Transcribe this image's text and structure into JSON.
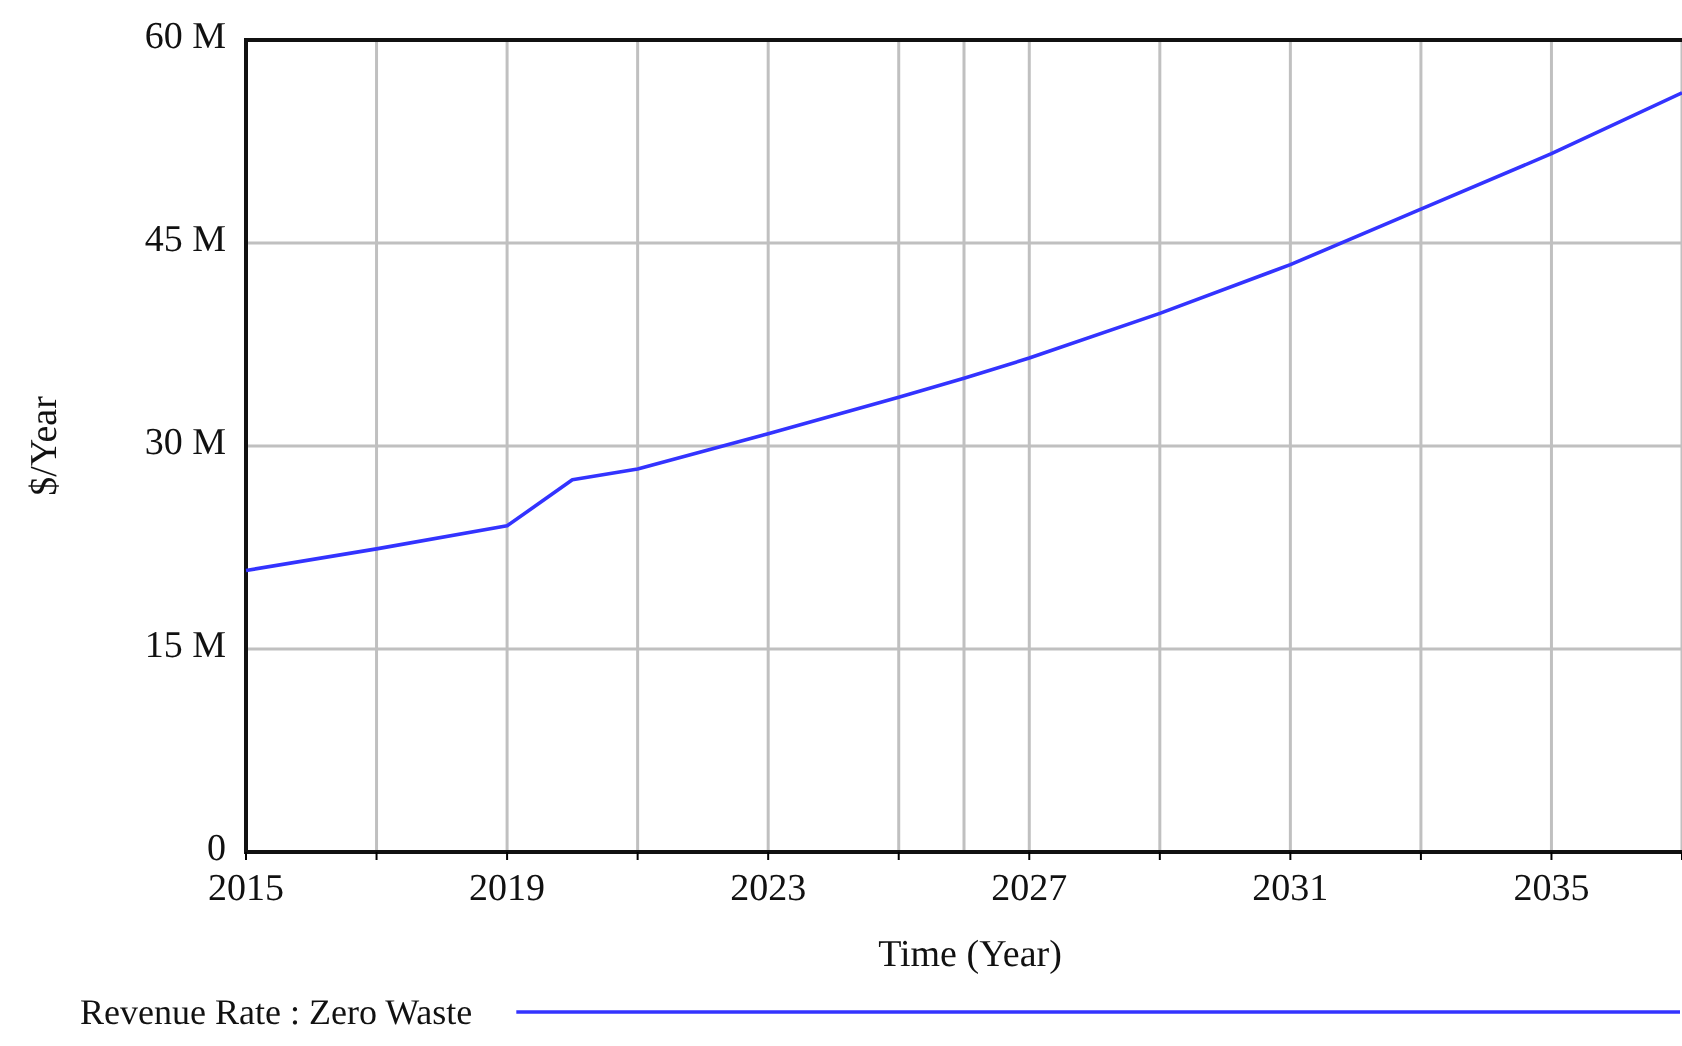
{
  "chart_data": {
    "type": "line",
    "xlabel": "Time (Year)",
    "ylabel": "$/Year",
    "xlim": [
      2015,
      2037
    ],
    "xticks": [
      2015,
      {
        "value": 2017,
        "label": null
      },
      2019,
      {
        "value": 2021,
        "label": null
      },
      2023,
      {
        "value": 2025,
        "label": null
      },
      2027,
      {
        "value": 2029,
        "label": null
      },
      2031,
      {
        "value": 2033,
        "label": null
      },
      2035,
      {
        "value": 2037,
        "label": null
      }
    ],
    "ylim": [
      0,
      60000000
    ],
    "yticks": [
      {
        "value": 0,
        "label": "0"
      },
      {
        "value": 15000000,
        "label": "15 M"
      },
      {
        "value": 30000000,
        "label": "30 M"
      },
      {
        "value": 45000000,
        "label": "45 M"
      },
      {
        "value": 60000000,
        "label": "60 M"
      }
    ],
    "grid": true,
    "legend": "bottom",
    "ref_lines": [
      {
        "axis": "x",
        "value": 2026,
        "color": "#c0c0c0"
      }
    ],
    "series": [
      {
        "name": "Revenue Rate : Zero Waste",
        "color": "#3333ff",
        "x": [
          2015,
          2017,
          2019,
          2020,
          2021,
          2023,
          2025,
          2026,
          2027,
          2029,
          2031,
          2033,
          2035,
          2037
        ],
        "values": [
          20800000,
          22400000,
          24100000,
          27500000,
          28300000,
          30900000,
          33600000,
          35000000,
          36500000,
          39800000,
          43400000,
          47500000,
          51600000,
          56100000
        ]
      }
    ]
  }
}
